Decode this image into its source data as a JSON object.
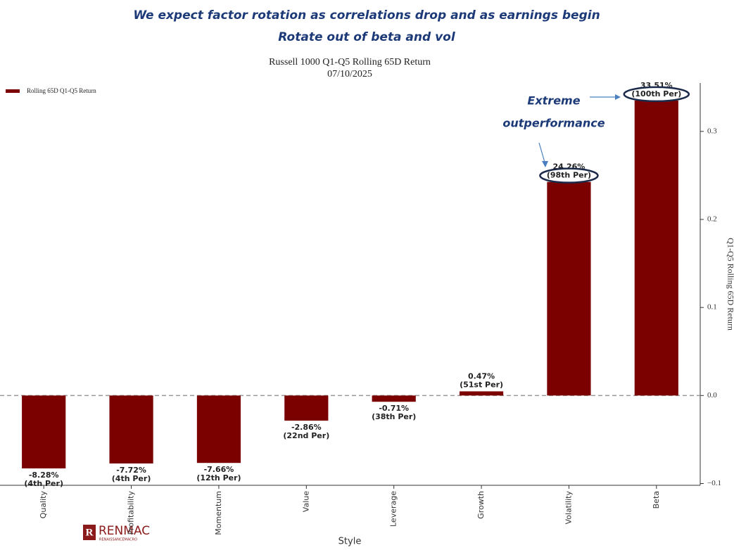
{
  "chart_data": {
    "type": "bar",
    "headline": [
      "We expect factor rotation as correlations drop and as earnings begin",
      "Rotate out of beta and vol"
    ],
    "title": "Russell 1000 Q1-Q5 Rolling 65D Return",
    "subtitle": "07/10/2025",
    "x_label": "Style",
    "y_label": "Q1-Q5 Rolling 65D Return",
    "categories": [
      "Quality",
      "Profitability",
      "Momentum",
      "Value",
      "Leverage",
      "Growth",
      "Volatility",
      "Beta"
    ],
    "series": [
      {
        "name": "Rolling 65D Q1-Q5 Return",
        "color": "#7b0000",
        "values": [
          -0.0828,
          -0.0772,
          -0.0766,
          -0.0286,
          -0.0071,
          0.0047,
          0.2426,
          0.3351
        ],
        "value_labels": [
          "-8.28%",
          "-7.72%",
          "-7.66%",
          "-2.86%",
          "-0.71%",
          "0.47%",
          "24.26%",
          "33.51%"
        ],
        "percentile_labels": [
          "(4th Per)",
          "(4th Per)",
          "(12th Per)",
          "(22nd Per)",
          "(38th Per)",
          "(51st Per)",
          "(98th Per)",
          "(100th Per)"
        ]
      }
    ],
    "ylim": [
      -0.102,
      0.355
    ],
    "yticks": [
      {
        "value": -0.1,
        "label": "−0.1"
      },
      {
        "value": 0,
        "label": "0.0"
      },
      0.1,
      0.2,
      0.3
    ],
    "y_axis_side": "right",
    "grid": false,
    "legend": "upper left",
    "annotation": [
      "Extreme",
      "outperformance"
    ],
    "logo": [
      "RENMAC",
      "RENAISSANCEMACRO"
    ]
  }
}
